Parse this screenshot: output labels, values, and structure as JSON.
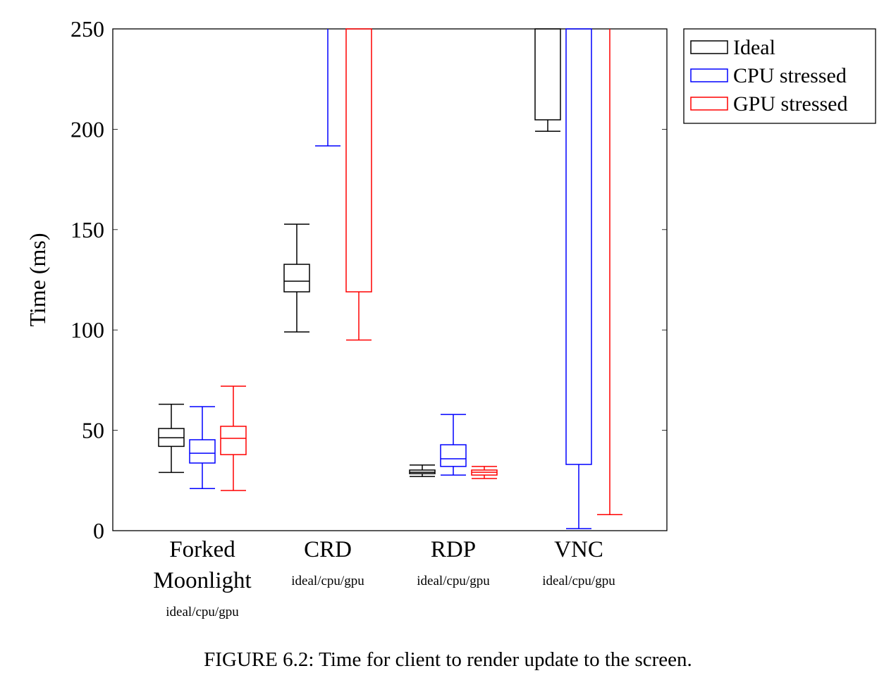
{
  "chart_data": {
    "type": "box",
    "ylabel": "Time (ms)",
    "caption": "FIGURE 6.2: Time for client to render update to the screen.",
    "categories": [
      "Forked Moonlight",
      "CRD",
      "RDP",
      "VNC"
    ],
    "group_label": "ideal/cpu/gpu",
    "ylim": [
      0,
      250
    ],
    "yticks": [
      0,
      50,
      100,
      150,
      200,
      250
    ],
    "legend_position": "outside-top-right",
    "series": [
      {
        "name": "Ideal",
        "color": "#000000",
        "low": [
          29,
          99,
          27,
          199
        ],
        "q1": [
          42,
          119,
          28.4,
          204.7
        ],
        "median": [
          46.3,
          124.3,
          29.1,
          null
        ],
        "q3": [
          50.9,
          132.7,
          30.2,
          null
        ],
        "high": [
          63,
          152.7,
          32.7,
          null
        ]
      },
      {
        "name": "CPU stressed",
        "color": "#0000ff",
        "low": [
          21,
          191.7,
          27.7,
          1
        ],
        "q1": [
          33.7,
          null,
          32,
          33
        ],
        "median": [
          38.6,
          null,
          35.8,
          null
        ],
        "q3": [
          45.3,
          null,
          42.8,
          null
        ],
        "high": [
          61.8,
          null,
          57.9,
          null
        ]
      },
      {
        "name": "GPU stressed",
        "color": "#ff0000",
        "low": [
          20,
          95,
          26,
          8
        ],
        "q1": [
          37.9,
          119,
          27.7,
          null
        ],
        "median": [
          46,
          null,
          29.1,
          null
        ],
        "q3": [
          52,
          null,
          30.2,
          null
        ],
        "high": [
          72,
          null,
          32,
          null
        ]
      }
    ]
  }
}
